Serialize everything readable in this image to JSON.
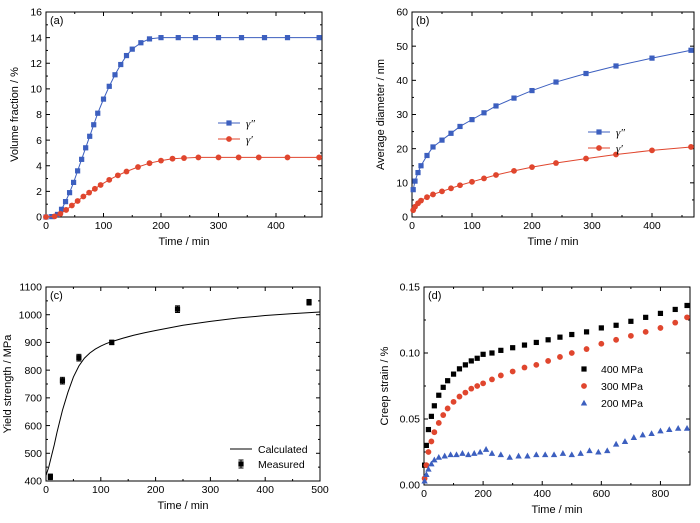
{
  "chart_data": [
    {
      "panel": "(a)",
      "type": "line",
      "xlabel": "Time / min",
      "ylabel": "Volume fraction / %",
      "xlim": [
        0,
        480
      ],
      "ylim": [
        0,
        16
      ],
      "xticks": [
        0,
        100,
        200,
        300,
        400
      ],
      "yticks": [
        0,
        2,
        4,
        6,
        8,
        10,
        12,
        14,
        16
      ],
      "legend_position": "right-middle",
      "series": [
        {
          "name": "γ″",
          "marker": "square",
          "color": "#3c5fbf",
          "x": [
            0,
            10,
            20,
            27,
            34,
            41,
            48,
            55,
            62,
            69,
            76,
            83,
            90,
            100,
            110,
            120,
            130,
            140,
            150,
            165,
            180,
            200,
            230,
            260,
            300,
            340,
            380,
            420,
            475
          ],
          "y": [
            0,
            0.03,
            0.2,
            0.6,
            1.2,
            1.9,
            2.7,
            3.6,
            4.5,
            5.4,
            6.3,
            7.2,
            8.1,
            9.2,
            10.2,
            11.1,
            11.9,
            12.6,
            13.1,
            13.6,
            13.9,
            14.0,
            14.0,
            14.0,
            14.0,
            14.0,
            14.0,
            14.0,
            14.0
          ]
        },
        {
          "name": "γ′",
          "marker": "circle",
          "color": "#e0462e",
          "x": [
            0,
            15,
            25,
            35,
            45,
            55,
            65,
            75,
            85,
            95,
            110,
            125,
            140,
            160,
            180,
            200,
            220,
            240,
            265,
            300,
            335,
            370,
            420,
            475
          ],
          "y": [
            0,
            0.05,
            0.25,
            0.55,
            0.9,
            1.25,
            1.6,
            1.9,
            2.2,
            2.5,
            2.9,
            3.25,
            3.55,
            3.9,
            4.2,
            4.4,
            4.55,
            4.6,
            4.65,
            4.65,
            4.65,
            4.65,
            4.65,
            4.65
          ]
        }
      ]
    },
    {
      "panel": "(b)",
      "type": "line",
      "xlabel": "Time / min",
      "ylabel": "Average diameter / nm",
      "xlim": [
        0,
        470
      ],
      "ylim": [
        0,
        60
      ],
      "xticks": [
        0,
        100,
        200,
        300,
        400
      ],
      "yticks": [
        0,
        10,
        20,
        30,
        40,
        50,
        60
      ],
      "legend_position": "right-middle",
      "series": [
        {
          "name": "γ″",
          "marker": "square",
          "color": "#3c5fbf",
          "x": [
            2,
            5,
            10,
            15,
            25,
            35,
            50,
            65,
            80,
            100,
            120,
            140,
            170,
            200,
            240,
            290,
            340,
            400,
            465
          ],
          "y": [
            8,
            10.5,
            13,
            15,
            18,
            20.5,
            22.5,
            24.5,
            26.5,
            28.5,
            30.5,
            32.5,
            34.8,
            37,
            39.5,
            42,
            44.2,
            46.5,
            48.8
          ]
        },
        {
          "name": "γ′",
          "marker": "circle",
          "color": "#e0462e",
          "x": [
            2,
            5,
            10,
            15,
            25,
            35,
            50,
            65,
            80,
            100,
            120,
            140,
            170,
            200,
            240,
            290,
            340,
            400,
            465
          ],
          "y": [
            2,
            3,
            4,
            4.8,
            5.8,
            6.6,
            7.5,
            8.4,
            9.3,
            10.3,
            11.3,
            12.3,
            13.5,
            14.6,
            15.8,
            17.1,
            18.3,
            19.5,
            20.5
          ]
        }
      ]
    },
    {
      "panel": "(c)",
      "type": "line",
      "xlabel": "Time / min",
      "ylabel": "Yield strength / MPa",
      "xlim": [
        0,
        500
      ],
      "ylim": [
        400,
        1100
      ],
      "xticks": [
        0,
        100,
        200,
        300,
        400,
        500
      ],
      "yticks": [
        400,
        500,
        600,
        700,
        800,
        900,
        1000,
        1100
      ],
      "legend_position": "bottom-right",
      "series": [
        {
          "name": "Calculated",
          "style": "line",
          "color": "#000000",
          "x": [
            0,
            5,
            10,
            15,
            20,
            25,
            30,
            40,
            50,
            60,
            70,
            80,
            90,
            100,
            110,
            120,
            140,
            160,
            180,
            200,
            250,
            300,
            350,
            400,
            450,
            500
          ],
          "y": [
            420,
            450,
            490,
            530,
            575,
            615,
            655,
            720,
            775,
            815,
            843,
            862,
            876,
            887,
            896,
            903,
            915,
            926,
            935,
            943,
            962,
            976,
            988,
            997,
            1004,
            1010
          ]
        },
        {
          "name": "Measured",
          "style": "errorbar",
          "color": "#000000",
          "x": [
            8,
            30,
            60,
            120,
            240,
            480
          ],
          "y": [
            415,
            762,
            845,
            900,
            1020,
            1045
          ],
          "err": [
            10,
            12,
            12,
            8,
            12,
            10
          ]
        }
      ]
    },
    {
      "panel": "(d)",
      "type": "scatter",
      "xlabel": "Time / min",
      "ylabel": "Creep strain / %",
      "xlim": [
        0,
        900
      ],
      "ylim": [
        0,
        0.15
      ],
      "xticks": [
        0,
        200,
        400,
        600,
        800
      ],
      "yticks": [
        0.0,
        0.05,
        0.1,
        0.15
      ],
      "ytick_labels": [
        "0.00",
        "0.05",
        "0.10",
        "0.15"
      ],
      "legend_position": "right-middle",
      "series": [
        {
          "name": "400 MPa",
          "marker": "square",
          "color": "#000000",
          "x": [
            2,
            8,
            15,
            25,
            35,
            50,
            65,
            80,
            100,
            120,
            140,
            160,
            180,
            200,
            230,
            260,
            300,
            340,
            380,
            420,
            460,
            500,
            550,
            600,
            650,
            700,
            750,
            800,
            850,
            890
          ],
          "y": [
            0.015,
            0.03,
            0.042,
            0.052,
            0.06,
            0.068,
            0.074,
            0.079,
            0.084,
            0.088,
            0.091,
            0.094,
            0.096,
            0.099,
            0.1,
            0.102,
            0.104,
            0.106,
            0.108,
            0.11,
            0.112,
            0.114,
            0.116,
            0.119,
            0.121,
            0.124,
            0.127,
            0.13,
            0.133,
            0.136
          ]
        },
        {
          "name": "300 MPa",
          "marker": "circle",
          "color": "#e0462e",
          "x": [
            2,
            8,
            15,
            25,
            35,
            50,
            65,
            80,
            100,
            120,
            140,
            160,
            180,
            200,
            230,
            260,
            300,
            340,
            380,
            420,
            460,
            500,
            550,
            600,
            650,
            700,
            750,
            800,
            850,
            890
          ],
          "y": [
            0.005,
            0.015,
            0.025,
            0.033,
            0.04,
            0.047,
            0.053,
            0.058,
            0.063,
            0.067,
            0.07,
            0.073,
            0.075,
            0.077,
            0.08,
            0.083,
            0.086,
            0.089,
            0.091,
            0.094,
            0.097,
            0.1,
            0.103,
            0.107,
            0.11,
            0.113,
            0.116,
            0.119,
            0.123,
            0.127
          ]
        },
        {
          "name": "200 MPa",
          "marker": "triangle",
          "color": "#3c5fbf",
          "x": [
            2,
            8,
            15,
            25,
            35,
            50,
            70,
            90,
            110,
            130,
            150,
            170,
            190,
            210,
            230,
            260,
            290,
            320,
            350,
            380,
            410,
            440,
            470,
            500,
            530,
            560,
            590,
            620,
            650,
            680,
            710,
            740,
            770,
            800,
            830,
            860,
            890
          ],
          "y": [
            0.003,
            0.008,
            0.012,
            0.016,
            0.019,
            0.021,
            0.022,
            0.023,
            0.023,
            0.024,
            0.023,
            0.024,
            0.025,
            0.027,
            0.024,
            0.023,
            0.021,
            0.022,
            0.022,
            0.023,
            0.023,
            0.023,
            0.024,
            0.023,
            0.024,
            0.026,
            0.025,
            0.026,
            0.031,
            0.033,
            0.036,
            0.038,
            0.039,
            0.041,
            0.042,
            0.043,
            0.043
          ]
        }
      ]
    }
  ]
}
